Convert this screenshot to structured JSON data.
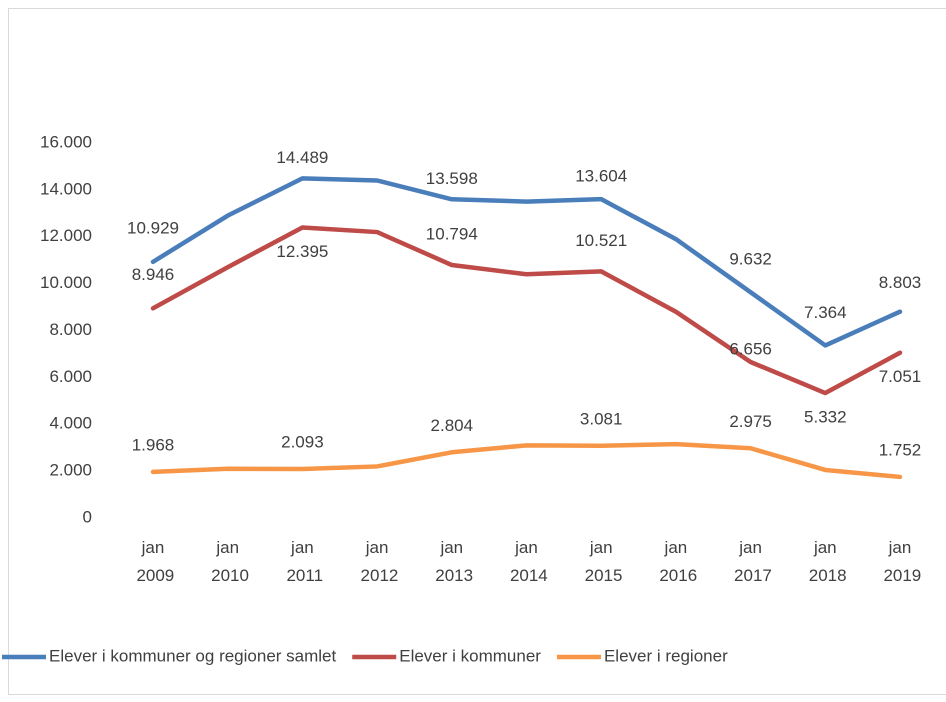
{
  "chart_data": {
    "type": "line",
    "categories": [
      "jan 2009",
      "jan 2010",
      "jan 2011",
      "jan 2012",
      "jan 2013",
      "jan 2014",
      "jan 2015",
      "jan 2016",
      "jan 2017",
      "jan 2018",
      "jan 2019"
    ],
    "series": [
      {
        "name": "Elever i kommuner og regioner samlet",
        "color": "#4a7ebb",
        "values": [
          10929,
          12900,
          14489,
          14400,
          13598,
          13500,
          13604,
          11900,
          9632,
          7364,
          8803
        ],
        "value_labels": [
          "10.929",
          null,
          "14.489",
          null,
          "13.598",
          null,
          "13.604",
          null,
          "9.632",
          "7.364",
          "8.803"
        ]
      },
      {
        "name": "Elever i kommuner",
        "color": "#be4b48",
        "values": [
          8946,
          10700,
          12395,
          12200,
          10794,
          10400,
          10521,
          8800,
          6656,
          5332,
          7051
        ],
        "value_labels": [
          "8.946",
          null,
          "12.395",
          null,
          "10.794",
          null,
          "10.521",
          null,
          "6.656",
          "5.332",
          "7.051"
        ]
      },
      {
        "name": "Elever i regioner",
        "color": "#f79646",
        "values": [
          1968,
          2100,
          2093,
          2200,
          2804,
          3100,
          3081,
          3150,
          2975,
          2050,
          1752
        ],
        "value_labels": [
          "1.968",
          null,
          "2.093",
          null,
          "2.804",
          null,
          "3.081",
          null,
          "2.975",
          null,
          "1.752"
        ]
      }
    ],
    "ylim": [
      0,
      16000
    ],
    "yticks": [
      0,
      {
        "value": 2000,
        "label": "2.000"
      },
      {
        "value": 4000,
        "label": "4.000"
      },
      {
        "value": 6000,
        "label": "6.000"
      },
      {
        "value": 8000,
        "label": "8.000"
      },
      {
        "value": 10000,
        "label": "10.000"
      },
      {
        "value": 12000,
        "label": "12.000"
      },
      {
        "value": 14000,
        "label": "14.000"
      },
      {
        "value": 16000,
        "label": "16.000"
      }
    ],
    "grid": false,
    "legend": "bottom"
  }
}
